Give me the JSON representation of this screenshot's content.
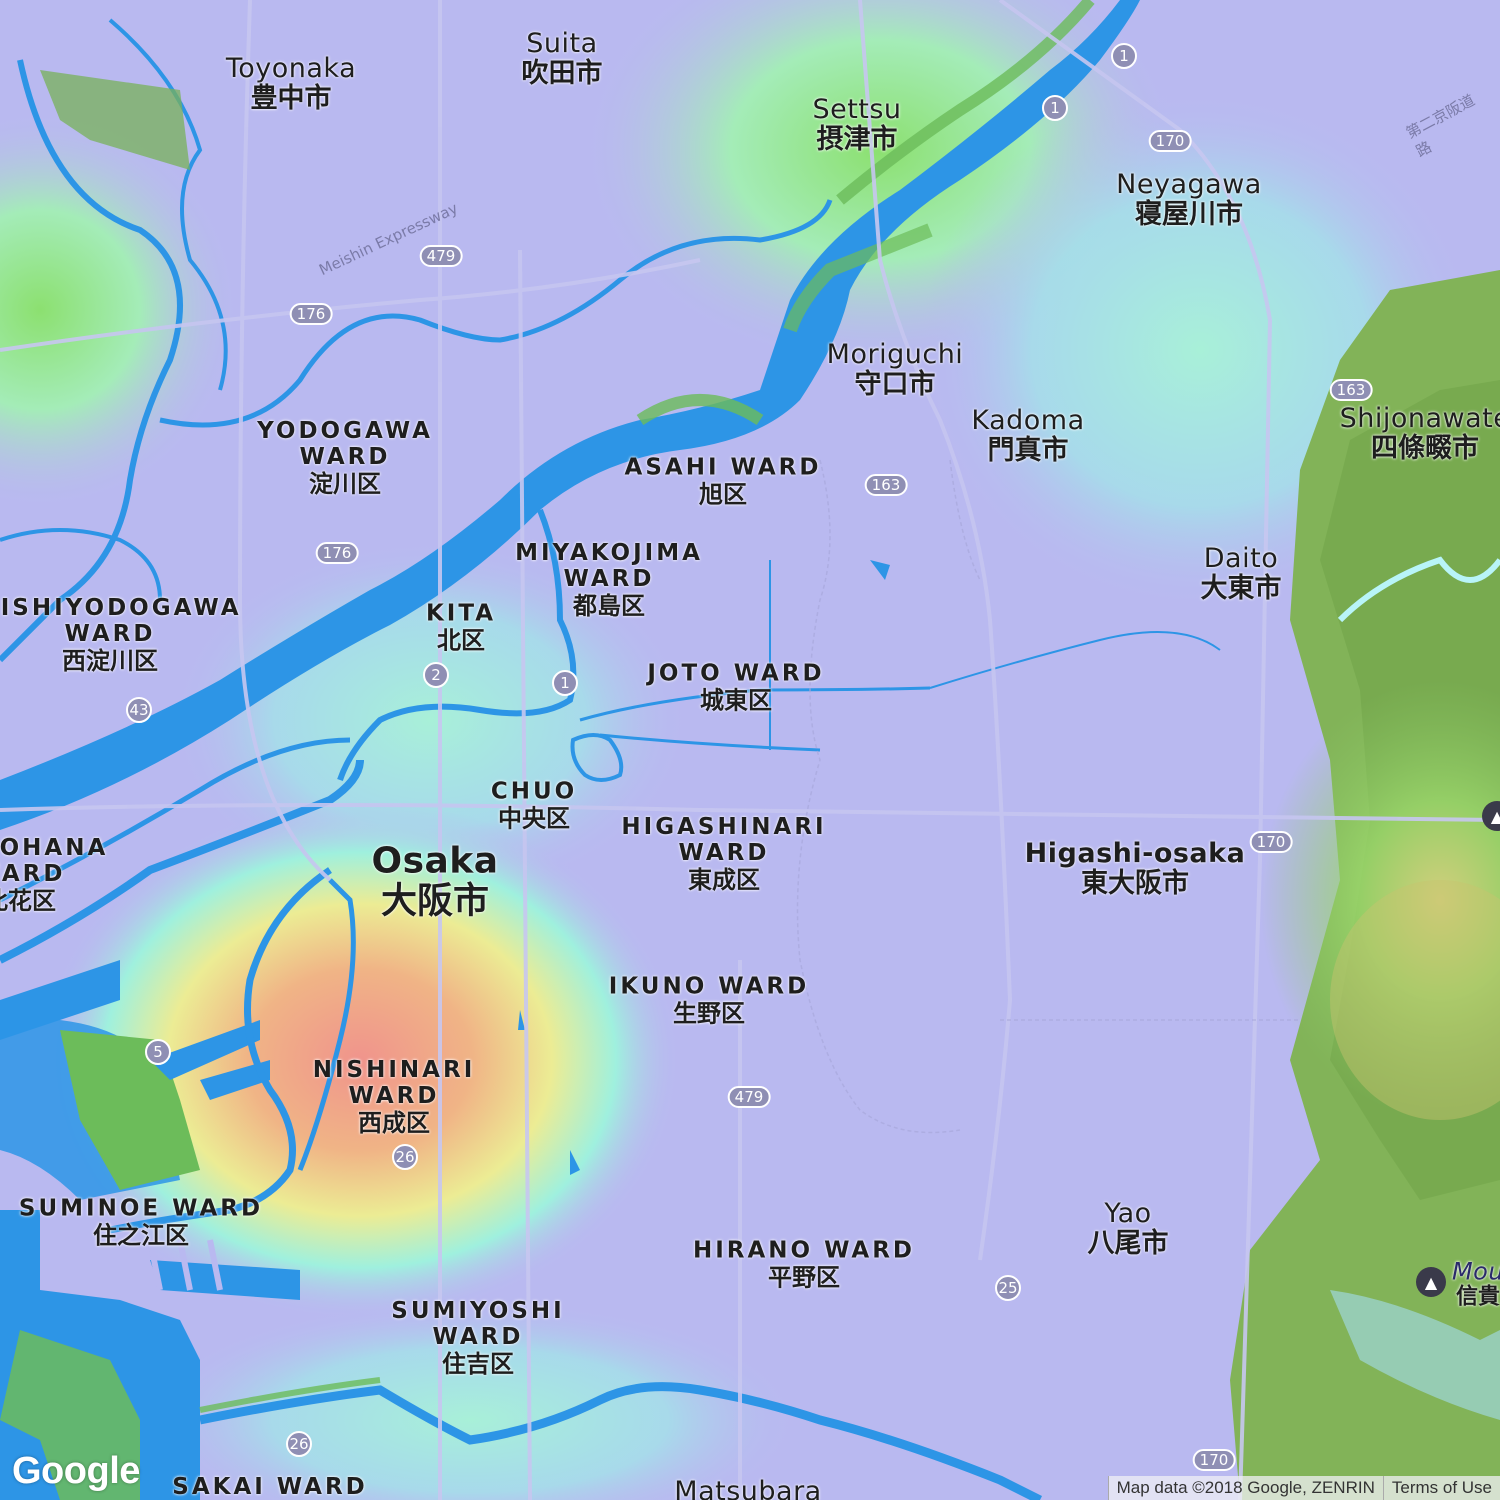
{
  "map": {
    "places": [
      {
        "id": "toyonaka",
        "en": "Toyonaka",
        "ja": "豊中市",
        "type": "city"
      },
      {
        "id": "suita",
        "en": "Suita",
        "ja": "吹田市",
        "type": "city"
      },
      {
        "id": "settsu",
        "en": "Settsu",
        "ja": "摂津市",
        "type": "city"
      },
      {
        "id": "neyagawa",
        "en": "Neyagawa",
        "ja": "寝屋川市",
        "type": "city"
      },
      {
        "id": "moriguchi",
        "en": "Moriguchi",
        "ja": "守口市",
        "type": "city"
      },
      {
        "id": "kadoma",
        "en": "Kadoma",
        "ja": "門真市",
        "type": "city"
      },
      {
        "id": "shijonawate",
        "en": "Shijonawate",
        "ja": "四條畷市",
        "type": "city"
      },
      {
        "id": "daito",
        "en": "Daito",
        "ja": "大東市",
        "type": "city"
      },
      {
        "id": "yodogawa",
        "en": "YODOGAWA WARD",
        "ja": "淀川区",
        "type": "ward"
      },
      {
        "id": "asahi",
        "en": "ASAHI WARD",
        "ja": "旭区",
        "type": "ward"
      },
      {
        "id": "miyakojima",
        "en": "MIYAKOJIMA WARD",
        "ja": "都島区",
        "type": "ward"
      },
      {
        "id": "nishiyodogawa",
        "en": "NISHIYODOGAWA WARD",
        "ja": "西淀川区",
        "type": "ward"
      },
      {
        "id": "kita",
        "en": "KITA",
        "ja": "北区",
        "type": "ward"
      },
      {
        "id": "joto",
        "en": "JOTO WARD",
        "ja": "城東区",
        "type": "ward"
      },
      {
        "id": "chuo",
        "en": "CHUO",
        "ja": "中央区",
        "type": "ward"
      },
      {
        "id": "higashinari",
        "en": "HIGASHINARI WARD",
        "ja": "東成区",
        "type": "ward"
      },
      {
        "id": "konohana",
        "en": "KONOHANA WARD",
        "ja": "此花区",
        "type": "ward"
      },
      {
        "id": "osaka",
        "en": "Osaka",
        "ja": "大阪市",
        "type": "big"
      },
      {
        "id": "higashiosaka",
        "en": "Higashi-osaka",
        "ja": "東大阪市",
        "type": "city"
      },
      {
        "id": "ikuno",
        "en": "IKUNO WARD",
        "ja": "生野区",
        "type": "ward"
      },
      {
        "id": "nishinari",
        "en": "NISHINARI WARD",
        "ja": "西成区",
        "type": "ward"
      },
      {
        "id": "suminoe",
        "en": "SUMINOE WARD",
        "ja": "住之江区",
        "type": "ward"
      },
      {
        "id": "yao",
        "en": "Yao",
        "ja": "八尾市",
        "type": "city"
      },
      {
        "id": "hirano",
        "en": "HIRANO WARD",
        "ja": "平野区",
        "type": "ward"
      },
      {
        "id": "sumiyoshi",
        "en": "SUMIYOSHI WARD",
        "ja": "住吉区",
        "type": "ward"
      },
      {
        "id": "sakai",
        "en": "SAKAI WARD",
        "ja": "",
        "type": "ward"
      },
      {
        "id": "matsubara",
        "en": "Matsubara",
        "ja": "",
        "type": "city"
      },
      {
        "id": "mount",
        "en": "Mou",
        "ja": "信貴",
        "type": "poi"
      }
    ],
    "route_shields": [
      {
        "id": "r1a",
        "label": "1"
      },
      {
        "id": "r1b",
        "label": "1"
      },
      {
        "id": "r170a",
        "label": "170"
      },
      {
        "id": "r479a",
        "label": "479"
      },
      {
        "id": "r176a",
        "label": "176"
      },
      {
        "id": "r163a",
        "label": "163"
      },
      {
        "id": "r163b",
        "label": "163"
      },
      {
        "id": "r176b",
        "label": "176"
      },
      {
        "id": "r2",
        "label": "2"
      },
      {
        "id": "r1c",
        "label": "1"
      },
      {
        "id": "r43",
        "label": "43"
      },
      {
        "id": "r170b",
        "label": "170"
      },
      {
        "id": "r5",
        "label": "5"
      },
      {
        "id": "r479b",
        "label": "479"
      },
      {
        "id": "r26a",
        "label": "26"
      },
      {
        "id": "r25",
        "label": "25"
      },
      {
        "id": "r26b",
        "label": "26"
      },
      {
        "id": "r170c",
        "label": "170"
      }
    ],
    "road_labels": [
      {
        "id": "meishin",
        "text": "Meishin Expressway"
      },
      {
        "id": "daini-keihan",
        "text": "第二京阪道路"
      }
    ],
    "heatmap": {
      "colors": {
        "low": "#b9b9f0",
        "mid": "#9ff0e0",
        "warm": "#f0e690",
        "hot": "#f0948c",
        "green": "#78d264"
      }
    },
    "water_color": "#2d95e6",
    "footer": {
      "logo": "Google",
      "attribution": "Map data ©2018 Google, ZENRIN",
      "terms": "Terms of Use"
    }
  }
}
